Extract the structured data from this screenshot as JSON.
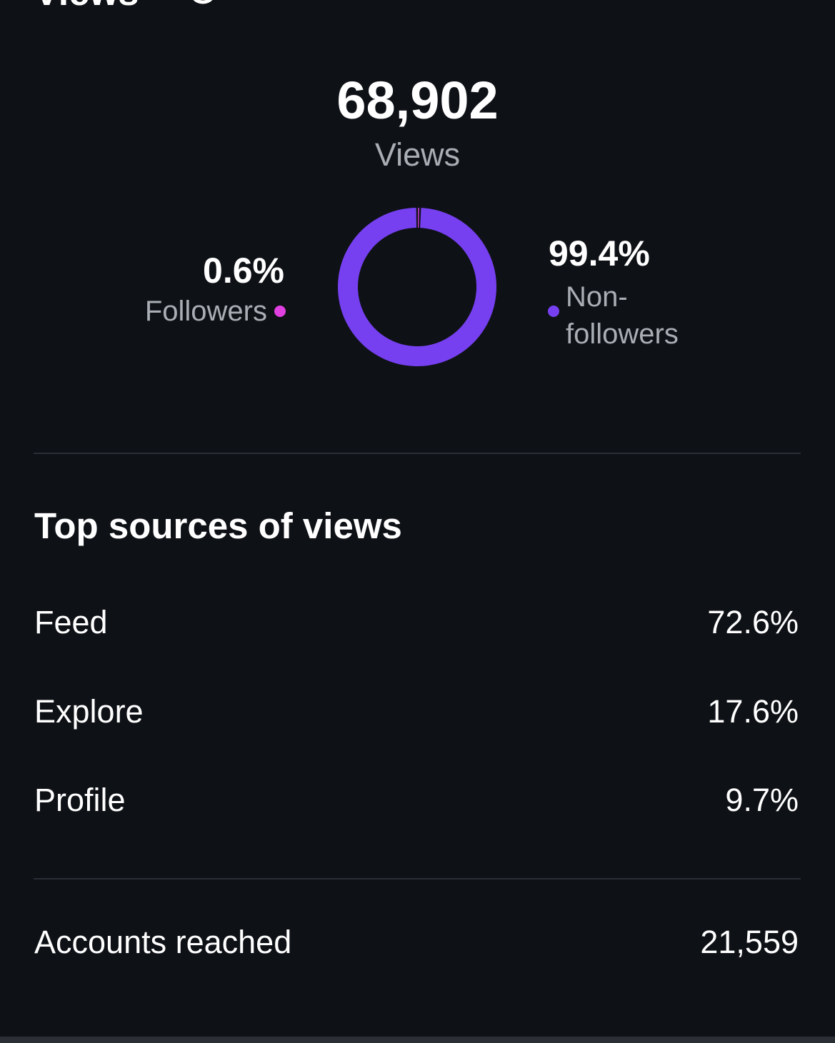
{
  "header": {
    "title": "Views"
  },
  "summary": {
    "total": "68,902",
    "total_label": "Views"
  },
  "donut": {
    "segments": [
      {
        "name": "Followers",
        "value": 0.6,
        "label": "0.6%",
        "color": "#e040e0"
      },
      {
        "name": "Non-followers",
        "value": 99.4,
        "label": "99.4%",
        "color": "#7640f0"
      }
    ]
  },
  "sources": {
    "title": "Top sources of views",
    "rows": [
      [
        "Feed",
        "72.6%"
      ],
      [
        "Explore",
        "17.6%"
      ],
      [
        "Profile",
        "9.7%"
      ]
    ]
  },
  "reach": {
    "label": "Accounts reached",
    "value": "21,559"
  }
}
